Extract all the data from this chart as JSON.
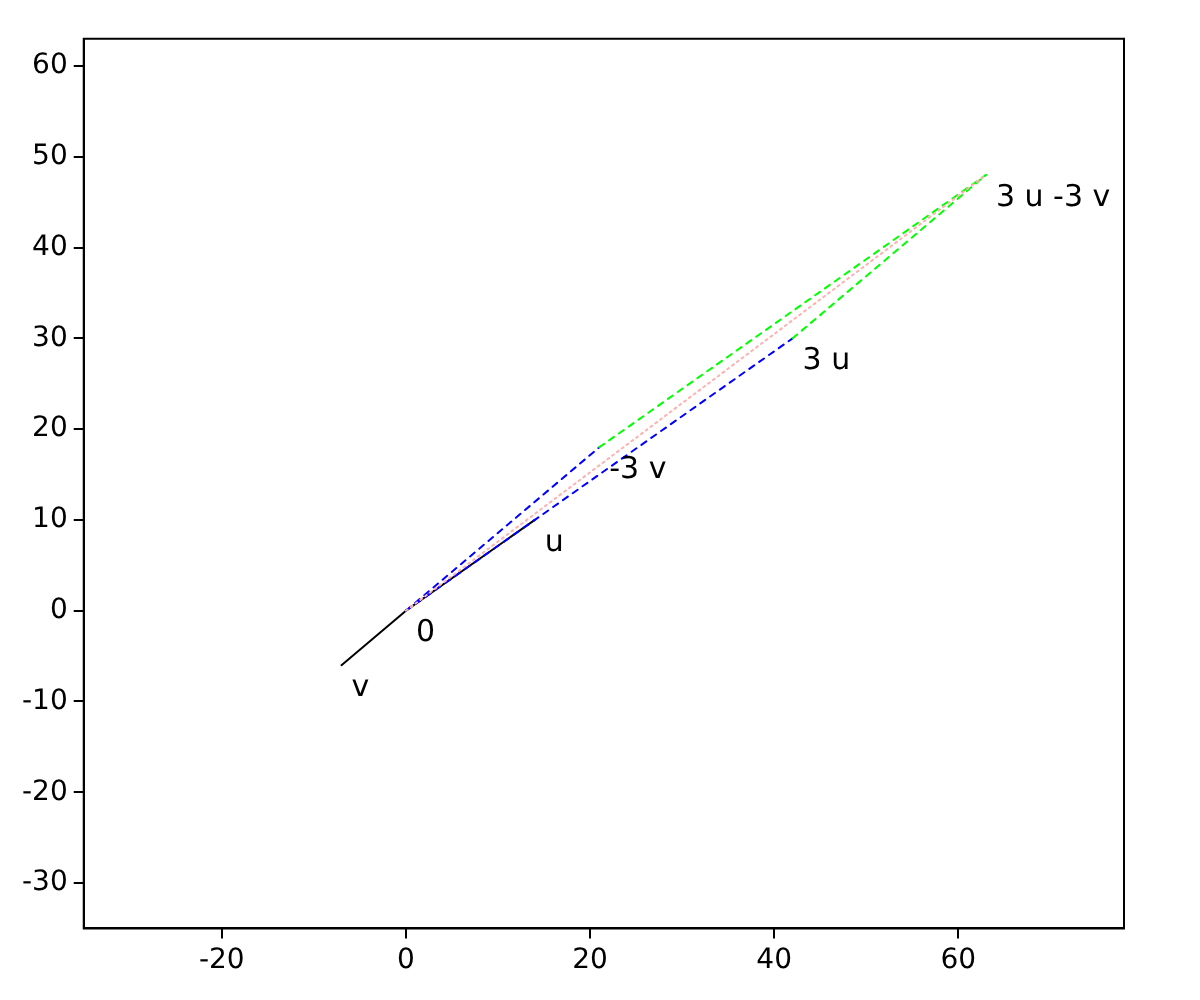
{
  "chart_data": {
    "type": "line",
    "xlim": [
      -35,
      78
    ],
    "ylim": [
      -35,
      63
    ],
    "xticks": [
      -20,
      0,
      20,
      40,
      60
    ],
    "yticks": [
      -30,
      -20,
      -10,
      0,
      10,
      20,
      30,
      40,
      50,
      60
    ],
    "grid": false,
    "legend": false,
    "marker": "none",
    "series": [
      {
        "x": [
          -7,
          0,
          14
        ],
        "values": [
          -6,
          0,
          10
        ],
        "color": "#000000",
        "line_style": "solid"
      },
      {
        "x": [
          0,
          42
        ],
        "values": [
          0,
          30
        ],
        "color": "#0000ff",
        "line_style": "dashed"
      },
      {
        "x": [
          0,
          21
        ],
        "values": [
          0,
          18
        ],
        "color": "#0000ff",
        "line_style": "dashed"
      },
      {
        "x": [
          21,
          63
        ],
        "values": [
          18,
          48
        ],
        "color": "#00ff00",
        "line_style": "dashed"
      },
      {
        "x": [
          42,
          63
        ],
        "values": [
          30,
          48
        ],
        "color": "#00ff00",
        "line_style": "dashed"
      },
      {
        "x": [
          0,
          63
        ],
        "values": [
          0,
          48
        ],
        "color": "#ffb0b0",
        "line_style": "dotted"
      }
    ],
    "annotations": [
      {
        "text": "0",
        "x": 0,
        "y": 0
      },
      {
        "text": "u",
        "x": 14,
        "y": 10
      },
      {
        "text": "v",
        "x": -7,
        "y": -6
      },
      {
        "text": "3 u",
        "x": 42,
        "y": 30
      },
      {
        "text": "-3 v",
        "x": 21,
        "y": 18
      },
      {
        "text": "3 u -3 v",
        "x": 63,
        "y": 48
      }
    ]
  }
}
